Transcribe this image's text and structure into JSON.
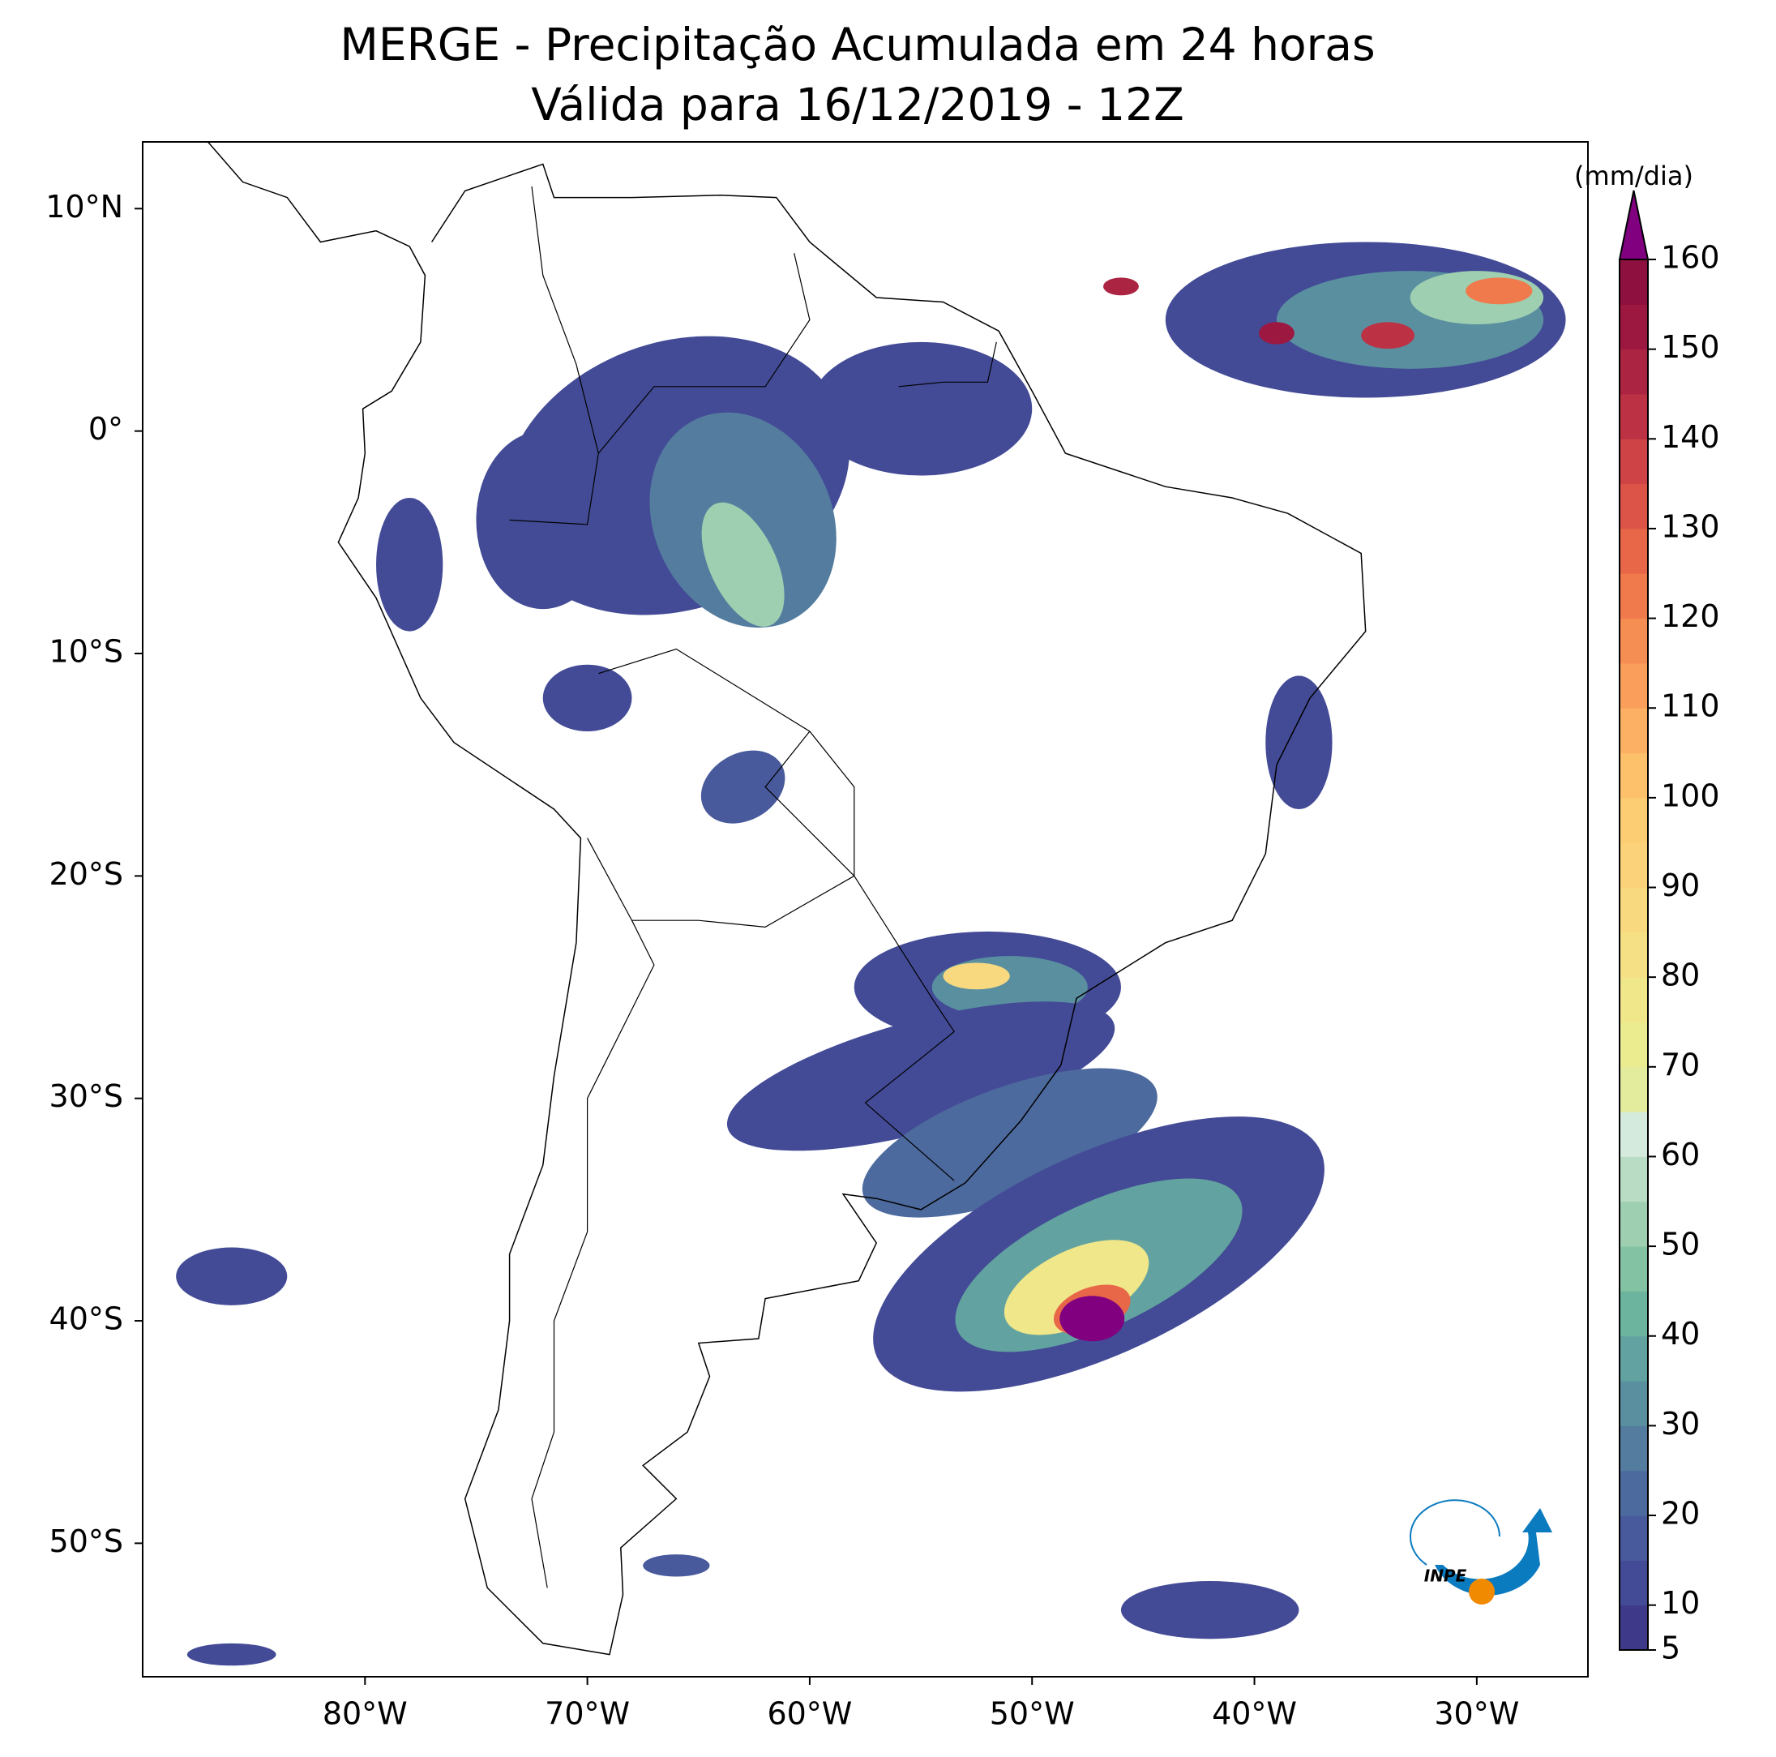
{
  "map": {
    "title": [
      "MERGE - Precipitação Acumulada em 24 horas",
      "Válida para 16/12/2019 - 12Z"
    ],
    "xlim": [
      -90,
      -25
    ],
    "ylim": [
      -56,
      13
    ],
    "xticks": [
      {
        "value": -80,
        "label": "80°W"
      },
      {
        "value": -70,
        "label": "70°W"
      },
      {
        "value": -60,
        "label": "60°W"
      },
      {
        "value": -50,
        "label": "50°W"
      },
      {
        "value": -40,
        "label": "40°W"
      },
      {
        "value": -30,
        "label": "30°W"
      }
    ],
    "yticks": [
      {
        "value": 10,
        "label": "10°N"
      },
      {
        "value": 0,
        "label": "0°"
      },
      {
        "value": -10,
        "label": "10°S"
      },
      {
        "value": -20,
        "label": "20°S"
      },
      {
        "value": -30,
        "label": "30°S"
      },
      {
        "value": -40,
        "label": "40°S"
      },
      {
        "value": -50,
        "label": "50°S"
      }
    ],
    "colorbar": {
      "label": "(mm/dia)",
      "levels": [
        5,
        10,
        15,
        20,
        25,
        30,
        35,
        40,
        45,
        50,
        55,
        60,
        65,
        70,
        75,
        80,
        85,
        90,
        95,
        100,
        105,
        110,
        115,
        120,
        125,
        130,
        135,
        140,
        145,
        150,
        155,
        160
      ],
      "colors": [
        "#3e3a89",
        "#434b96",
        "#485a9b",
        "#4d6a9e",
        "#537c9f",
        "#5a8fa0",
        "#62a2a0",
        "#6db49e",
        "#84c2a4",
        "#9dcfb0",
        "#b8ddc4",
        "#d3eadc",
        "#e3eb9c",
        "#ebeb8f",
        "#f0e68a",
        "#f5e085",
        "#f8d97f",
        "#fbd27a",
        "#fdcd74",
        "#fdc06b",
        "#fbb063",
        "#f99f5b",
        "#f58e53",
        "#f07a4c",
        "#e86748",
        "#dc5447",
        "#cd4346",
        "#bc3244",
        "#ab2442",
        "#9c1840",
        "#8e103f"
      ],
      "over_color": "#800080",
      "ticks": [
        5,
        10,
        20,
        30,
        40,
        50,
        60,
        70,
        80,
        90,
        100,
        110,
        120,
        130,
        140,
        150,
        160
      ]
    },
    "logo_text": "INPE"
  }
}
